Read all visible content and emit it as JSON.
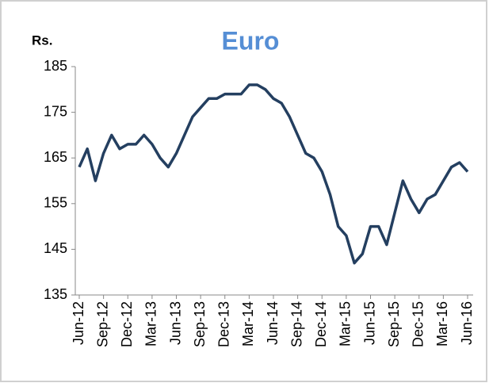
{
  "chart_data": {
    "type": "line",
    "title": "Euro",
    "y_label": "Rs.",
    "categories": [
      "Jun-12",
      null,
      null,
      "Sep-12",
      null,
      null,
      "Dec-12",
      null,
      null,
      "Mar-13",
      null,
      null,
      "Jun-13",
      null,
      null,
      "Sep-13",
      null,
      null,
      "Dec-13",
      null,
      null,
      "Mar-14",
      null,
      null,
      "Jun-14",
      null,
      null,
      "Sep-14",
      null,
      null,
      "Dec-14",
      null,
      null,
      "Mar-15",
      null,
      null,
      "Jun-15",
      null,
      null,
      "Sep-15",
      null,
      null,
      "Dec-15",
      null,
      null,
      "Mar-16",
      null,
      null,
      "Jun-16"
    ],
    "values": [
      163,
      167,
      160,
      166,
      170,
      167,
      168,
      168,
      170,
      168,
      165,
      163,
      166,
      170,
      174,
      176,
      178,
      178,
      179,
      179,
      179,
      181,
      181,
      180,
      178,
      177,
      174,
      170,
      166,
      165,
      162,
      157,
      150,
      148,
      142,
      144,
      150,
      150,
      146,
      153,
      160,
      156,
      153,
      156,
      157,
      160,
      163,
      164,
      162
    ],
    "color": "#243f60",
    "title_color": "#558ed5",
    "ylim": [
      135,
      185
    ],
    "yticks": [
      135,
      145,
      155,
      165,
      175,
      185
    ],
    "grid": false
  }
}
